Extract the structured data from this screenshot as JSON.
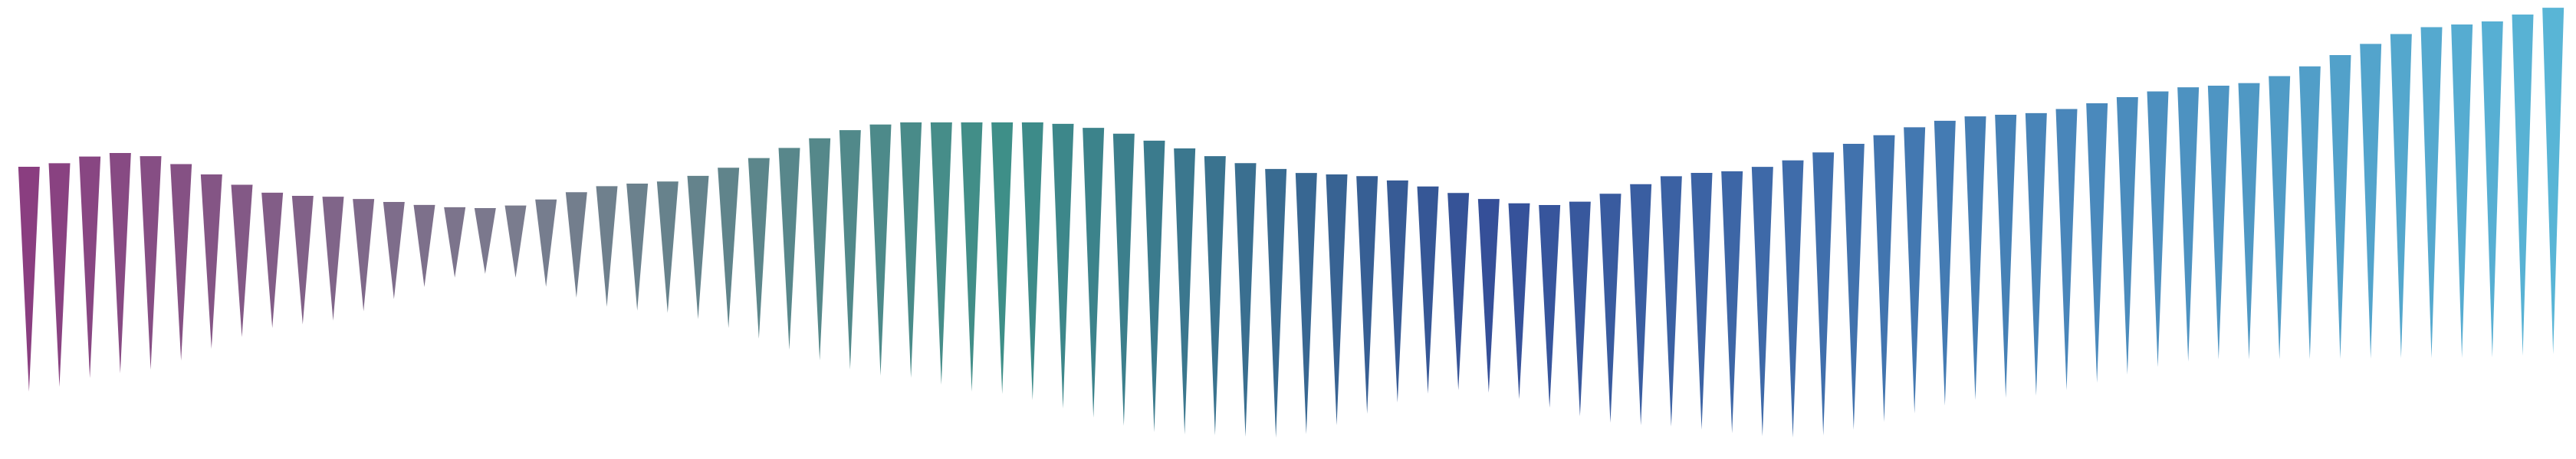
{
  "artwork": {
    "shape": "downward-pointing-triangle",
    "count": 84,
    "palette": {
      "start": "#8a3e80",
      "mid_grey": "#7a7c8e",
      "teal": "#3e8f88",
      "blue": "#354f98",
      "end": "#5ab8d8"
    }
  }
}
